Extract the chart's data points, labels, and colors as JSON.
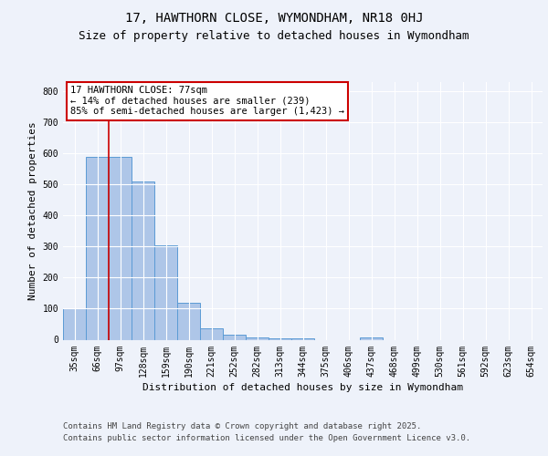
{
  "title_line1": "17, HAWTHORN CLOSE, WYMONDHAM, NR18 0HJ",
  "title_line2": "Size of property relative to detached houses in Wymondham",
  "xlabel": "Distribution of detached houses by size in Wymondham",
  "ylabel": "Number of detached properties",
  "categories": [
    "35sqm",
    "66sqm",
    "97sqm",
    "128sqm",
    "159sqm",
    "190sqm",
    "221sqm",
    "252sqm",
    "282sqm",
    "313sqm",
    "344sqm",
    "375sqm",
    "406sqm",
    "437sqm",
    "468sqm",
    "499sqm",
    "530sqm",
    "561sqm",
    "592sqm",
    "623sqm",
    "654sqm"
  ],
  "values": [
    100,
    590,
    590,
    510,
    305,
    120,
    38,
    17,
    8,
    5,
    5,
    0,
    0,
    8,
    0,
    0,
    0,
    0,
    0,
    0,
    0
  ],
  "bar_color": "#aec6e8",
  "bar_edge_color": "#5b9bd5",
  "vline_x": 1.5,
  "vline_color": "#cc0000",
  "annotation_text": "17 HAWTHORN CLOSE: 77sqm\n← 14% of detached houses are smaller (239)\n85% of semi-detached houses are larger (1,423) →",
  "annotation_box_color": "#ffffff",
  "annotation_box_edge_color": "#cc0000",
  "ylim": [
    0,
    830
  ],
  "yticks": [
    0,
    100,
    200,
    300,
    400,
    500,
    600,
    700,
    800
  ],
  "footer_line1": "Contains HM Land Registry data © Crown copyright and database right 2025.",
  "footer_line2": "Contains public sector information licensed under the Open Government Licence v3.0.",
  "background_color": "#eef2fa",
  "plot_background_color": "#eef2fa",
  "grid_color": "#ffffff",
  "title_fontsize": 10,
  "subtitle_fontsize": 9,
  "axis_label_fontsize": 8,
  "tick_fontsize": 7,
  "annotation_fontsize": 7.5,
  "footer_fontsize": 6.5
}
